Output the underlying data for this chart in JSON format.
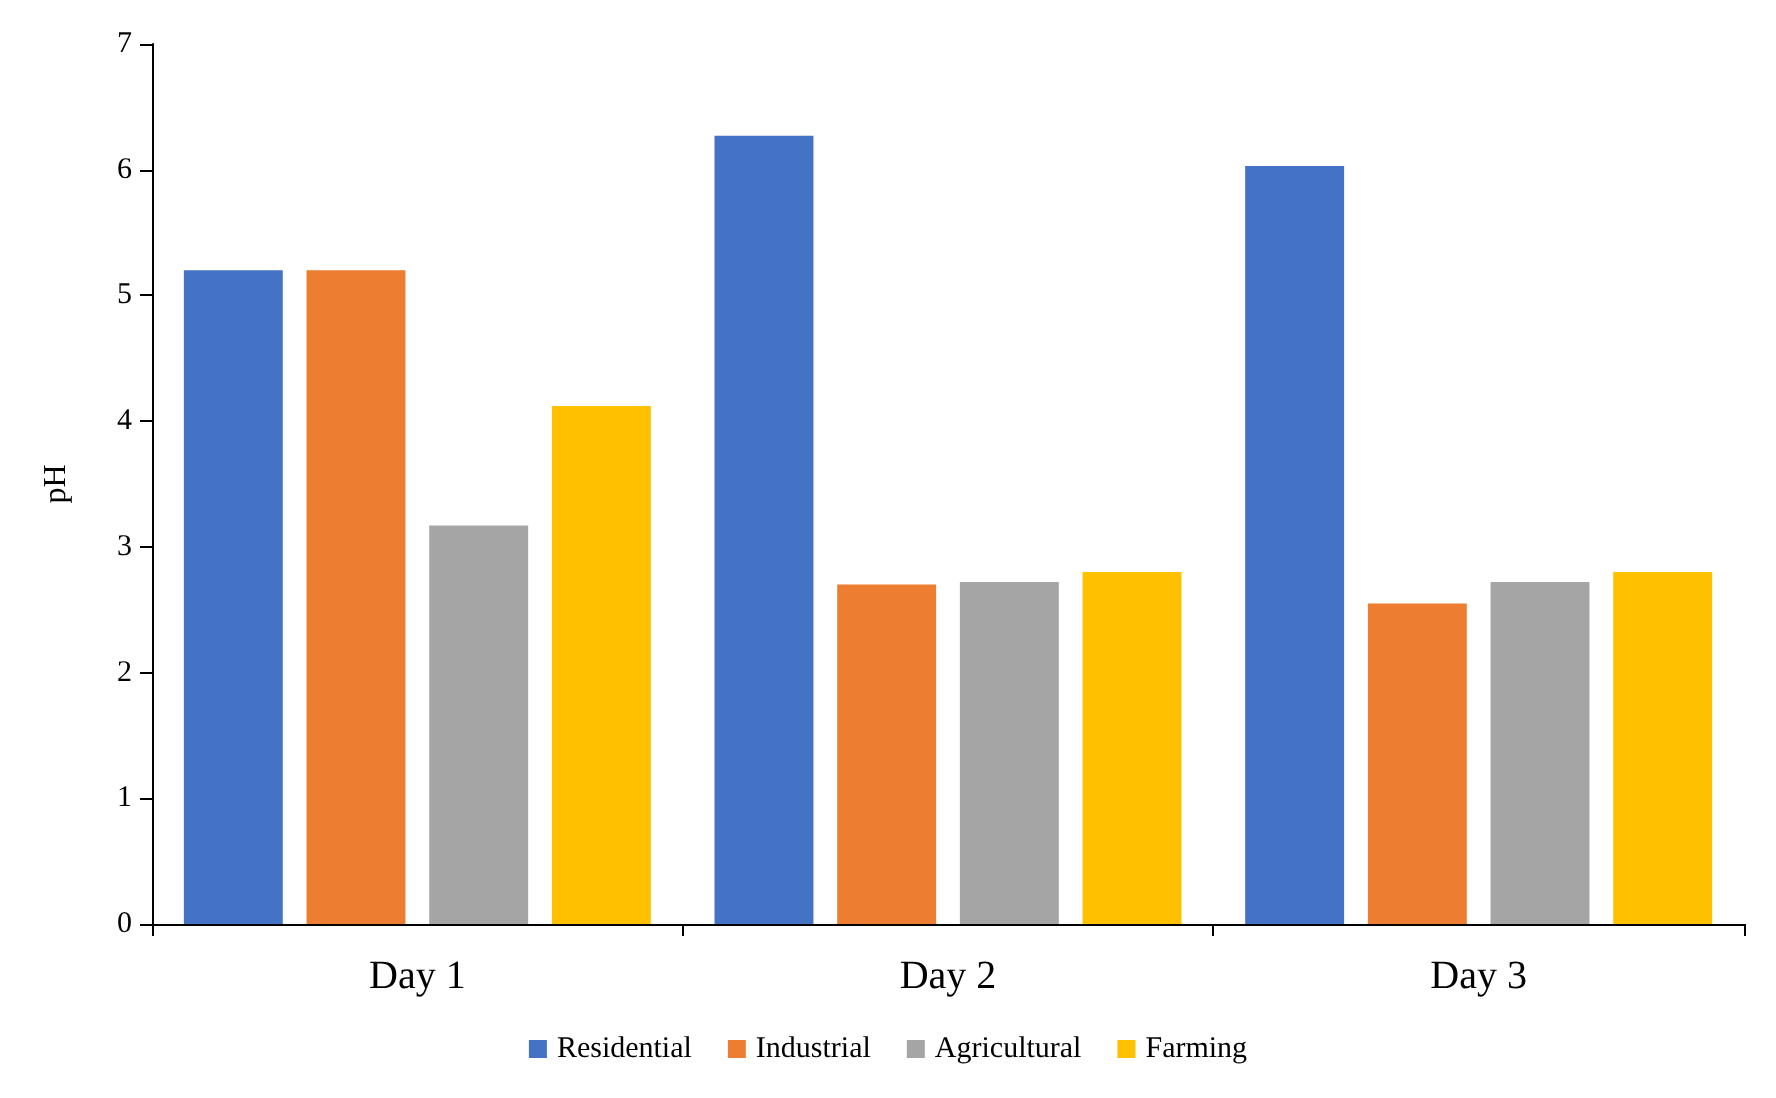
{
  "chart_data": {
    "type": "bar",
    "ylabel": "pH",
    "categories": [
      "Day 1",
      "Day 2",
      "Day 3"
    ],
    "series": [
      {
        "name": "Residential",
        "color": "#4472c4",
        "values": [
          5.2,
          6.27,
          6.03
        ]
      },
      {
        "name": "Industrial",
        "color": "#ed7d31",
        "values": [
          5.2,
          2.7,
          2.55
        ]
      },
      {
        "name": "Agricultural",
        "color": "#a5a5a5",
        "values": [
          3.17,
          2.72,
          2.72
        ]
      },
      {
        "name": "Farming",
        "color": "#ffc000",
        "values": [
          4.12,
          2.8,
          2.8
        ]
      }
    ],
    "ylim": [
      0,
      7
    ],
    "yticks": [
      0,
      1,
      2,
      3,
      4,
      5,
      6,
      7
    ],
    "grid": false,
    "legend": "bottom"
  }
}
